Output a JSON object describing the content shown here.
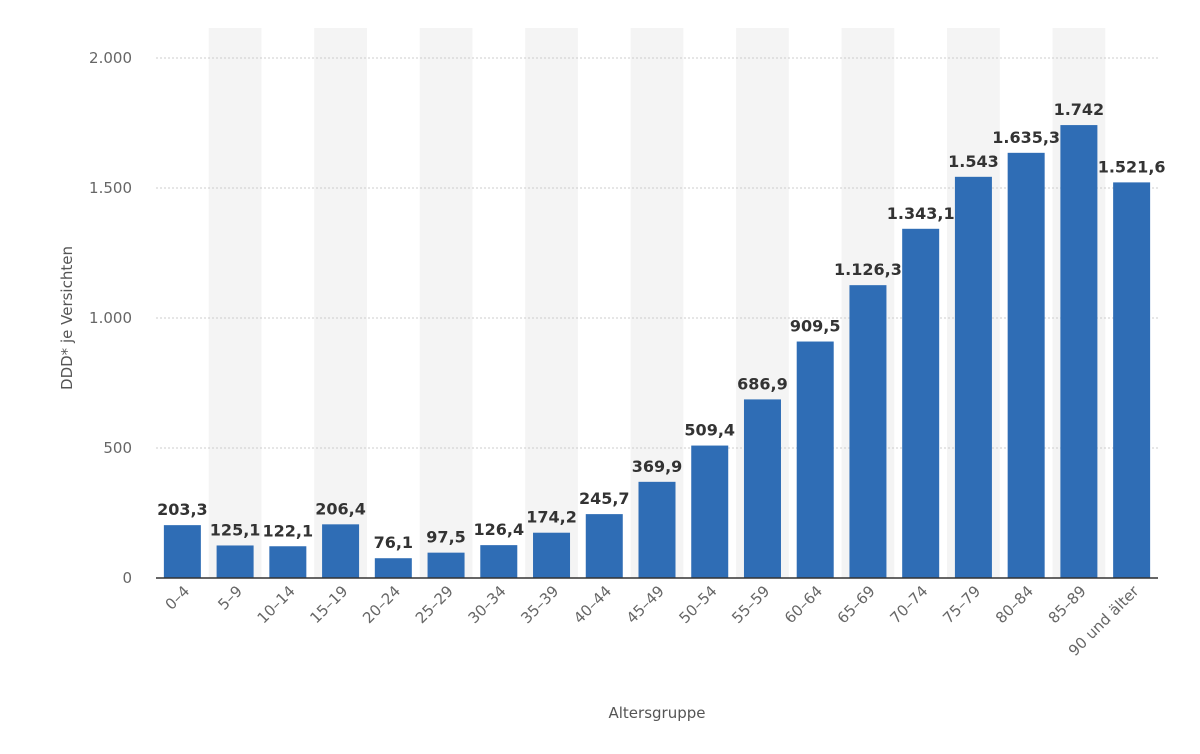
{
  "chart_data": {
    "type": "bar",
    "xlabel": "Altersgruppe",
    "ylabel": "DDD* je Versichten",
    "ylim": [
      0,
      2000
    ],
    "yticks": [
      {
        "value": 0,
        "label": "0"
      },
      {
        "value": 500,
        "label": "500"
      },
      {
        "value": 1000,
        "label": "1.000"
      },
      {
        "value": 1500,
        "label": "1.500"
      },
      {
        "value": 2000,
        "label": "2.000"
      }
    ],
    "grid": true,
    "colors": {
      "bar": "#2f6db5",
      "grid": "#cccccc",
      "band": "#f4f4f4",
      "axis": "#333333"
    },
    "categories": [
      "0–4",
      "5–9",
      "10–14",
      "15–19",
      "20–24",
      "25–29",
      "30–34",
      "35–39",
      "40–44",
      "45–49",
      "50–54",
      "55–59",
      "60–64",
      "65–69",
      "70–74",
      "75–79",
      "80–84",
      "85–89",
      "90 und älter"
    ],
    "values": [
      203.3,
      125.1,
      122.1,
      206.4,
      76.1,
      97.5,
      126.4,
      174.2,
      245.7,
      369.9,
      509.4,
      686.9,
      909.5,
      1126.3,
      1343.1,
      1543,
      1635.3,
      1742,
      1521.6
    ],
    "value_labels": [
      "203,3",
      "125,1",
      "122,1",
      "206,4",
      "76,1",
      "97,5",
      "126,4",
      "174,2",
      "245,7",
      "369,9",
      "509,4",
      "686,9",
      "909,5",
      "1.126,3",
      "1.343,1",
      "1.543",
      "1.635,3",
      "1.742",
      "1.521,6"
    ]
  }
}
